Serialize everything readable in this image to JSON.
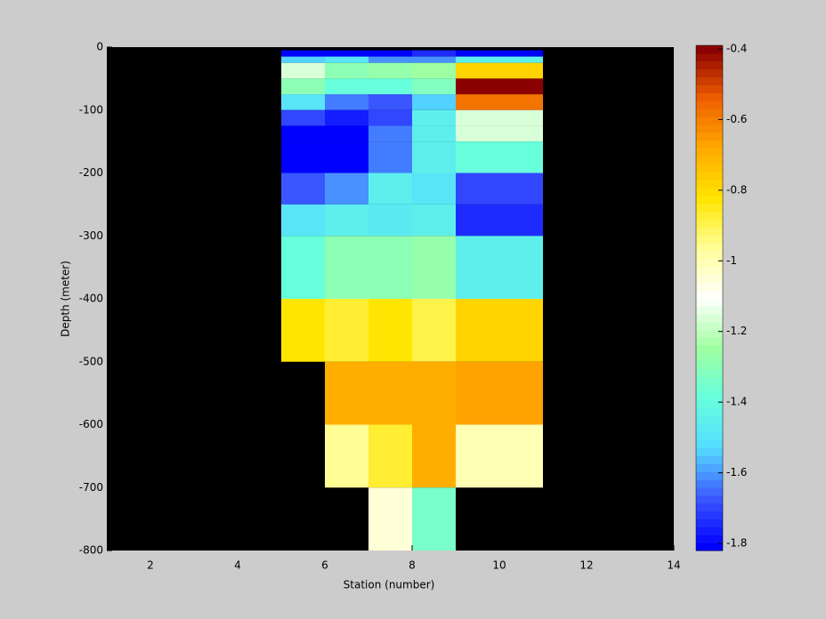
{
  "chart_data": {
    "type": "heatmap",
    "x_label": "Station (number)",
    "y_label": "Depth (meter)",
    "xlim": [
      1,
      14
    ],
    "ylim": [
      -800,
      0
    ],
    "xticks": [
      2,
      4,
      6,
      8,
      10,
      12,
      14
    ],
    "yticks": [
      0,
      -100,
      -200,
      -300,
      -400,
      -500,
      -600,
      -700,
      -800
    ],
    "x_edges": [
      5,
      6,
      7,
      8,
      9,
      11
    ],
    "y_edges": [
      -5,
      -15,
      -25,
      -50,
      -75,
      -100,
      -125,
      -150,
      -200,
      -250,
      -300,
      -400,
      -500,
      -600,
      -700,
      -800
    ],
    "values": [
      [
        -1.8,
        -1.8,
        -1.8,
        -1.75,
        -1.8
      ],
      [
        -1.55,
        -1.5,
        -1.6,
        -1.6,
        -1.45
      ],
      [
        -1.15,
        -1.3,
        -1.28,
        -1.25,
        -0.78
      ],
      [
        -1.3,
        -1.38,
        -1.38,
        -1.32,
        -0.4
      ],
      [
        -1.5,
        -1.62,
        -1.68,
        -1.55,
        -0.58
      ],
      [
        -1.7,
        -1.77,
        -1.7,
        -1.45,
        -1.15
      ],
      [
        -1.8,
        -1.8,
        -1.62,
        -1.45,
        -1.15
      ],
      [
        -1.8,
        -1.8,
        -1.62,
        -1.45,
        -1.38
      ],
      [
        -1.68,
        -1.6,
        -1.45,
        -1.5,
        -1.7
      ],
      [
        -1.5,
        -1.45,
        -1.47,
        -1.45,
        -1.75
      ],
      [
        -1.38,
        -1.3,
        -1.3,
        -1.27,
        -1.45
      ],
      [
        -0.82,
        -0.86,
        -0.83,
        -0.9,
        -0.78
      ],
      [
        null,
        -0.7,
        -0.7,
        -0.7,
        -0.66
      ],
      [
        null,
        -0.95,
        -0.88,
        -0.7,
        -1.0
      ],
      [
        null,
        null,
        -1.05,
        -1.35,
        null
      ]
    ],
    "clim": [
      -1.82,
      -0.39
    ],
    "cticks": [
      -0.4,
      -0.6,
      -0.8,
      -1,
      -1.2,
      -1.4,
      -1.6,
      -1.8
    ],
    "colormap": [
      "#0000ff",
      "#3c5aff",
      "#55ddff",
      "#66ffdd",
      "#a0ffa0",
      "#ffffff",
      "#ffff99",
      "#ffe600",
      "#ffaa00",
      "#f06000",
      "#8b0000"
    ],
    "nan_color": "#000000"
  }
}
